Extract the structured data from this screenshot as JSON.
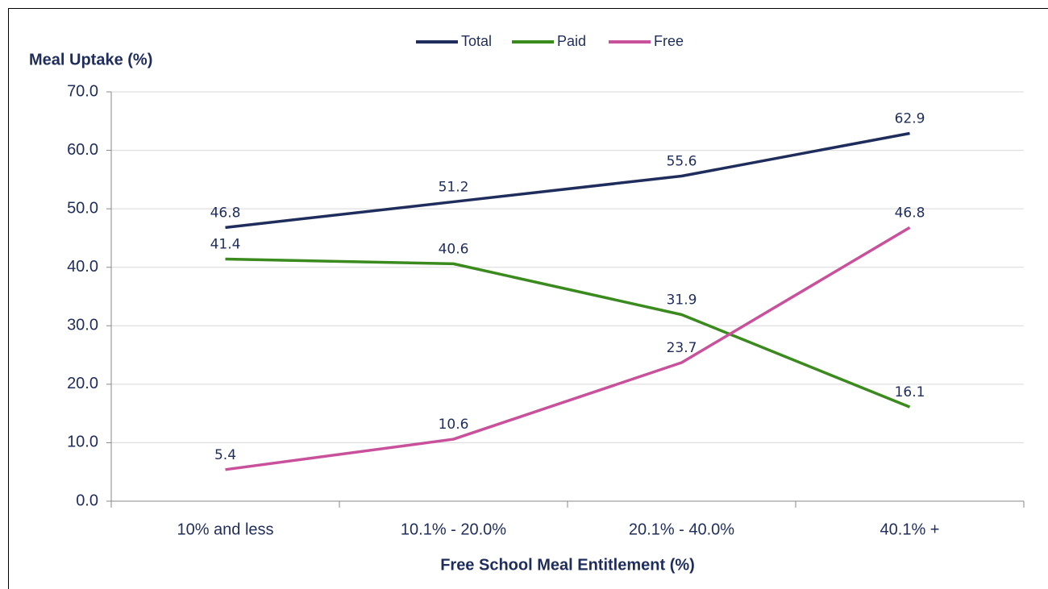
{
  "chart_data": {
    "type": "line",
    "y_label": "Meal Uptake (%)",
    "x_label": "Free School Meal Entitlement (%)",
    "categories": [
      "10% and less",
      "10.1% - 20.0%",
      "20.1% - 40.0%",
      "40.1% +"
    ],
    "series": [
      {
        "name": "Total",
        "color": "#1f2d5c",
        "values": [
          46.8,
          51.2,
          55.6,
          62.9
        ]
      },
      {
        "name": "Paid",
        "color": "#3a8a1e",
        "values": [
          41.4,
          40.6,
          31.9,
          16.1
        ]
      },
      {
        "name": "Free",
        "color": "#c9509a",
        "values": [
          5.4,
          10.6,
          23.7,
          46.8
        ]
      }
    ],
    "ylim": [
      0,
      70
    ],
    "yticks": [
      {
        "value": 0,
        "label": "0.0"
      },
      {
        "value": 10,
        "label": "10.0"
      },
      {
        "value": 20,
        "label": "20.0"
      },
      {
        "value": 30,
        "label": "30.0"
      },
      {
        "value": 40,
        "label": "40.0"
      },
      {
        "value": 50,
        "label": "50.0"
      },
      {
        "value": 60,
        "label": "60.0"
      },
      {
        "value": 70,
        "label": "70.0"
      }
    ],
    "grid": true,
    "legend": "top"
  }
}
